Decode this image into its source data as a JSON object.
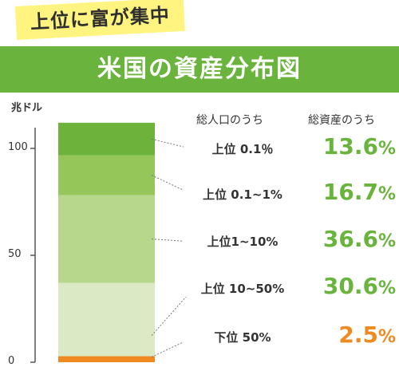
{
  "header": {
    "tag": "上位に富が集中",
    "title": "米国の資産分布図"
  },
  "chart_data": {
    "type": "bar",
    "stacked": true,
    "ylabel": "兆ドル",
    "y_ticks": [
      "0",
      "50",
      "100"
    ],
    "ylim": [
      0,
      112
    ],
    "columns": [
      "総人口のうち",
      "総資産のうち"
    ],
    "series": [
      {
        "name": "下位 50%",
        "share": "2.5",
        "value": 2.8,
        "color": "#ef8a23",
        "text_color": "#ef8a23"
      },
      {
        "name": "上位 10~50%",
        "share": "30.6",
        "value": 34.3,
        "color": "#dbe9c4",
        "text_color": "#6ab43e"
      },
      {
        "name": "上位1~10%",
        "share": "36.6",
        "value": 41.0,
        "color": "#b7d88c",
        "text_color": "#6ab43e"
      },
      {
        "name": "上位 0.1~1%",
        "share": "16.7",
        "value": 18.7,
        "color": "#94c65a",
        "text_color": "#6ab43e"
      },
      {
        "name": "上位 0.1％",
        "share": "13.6",
        "value": 15.2,
        "color": "#6db23b",
        "text_color": "#6ab43e"
      }
    ],
    "pct_symbol": "%"
  }
}
